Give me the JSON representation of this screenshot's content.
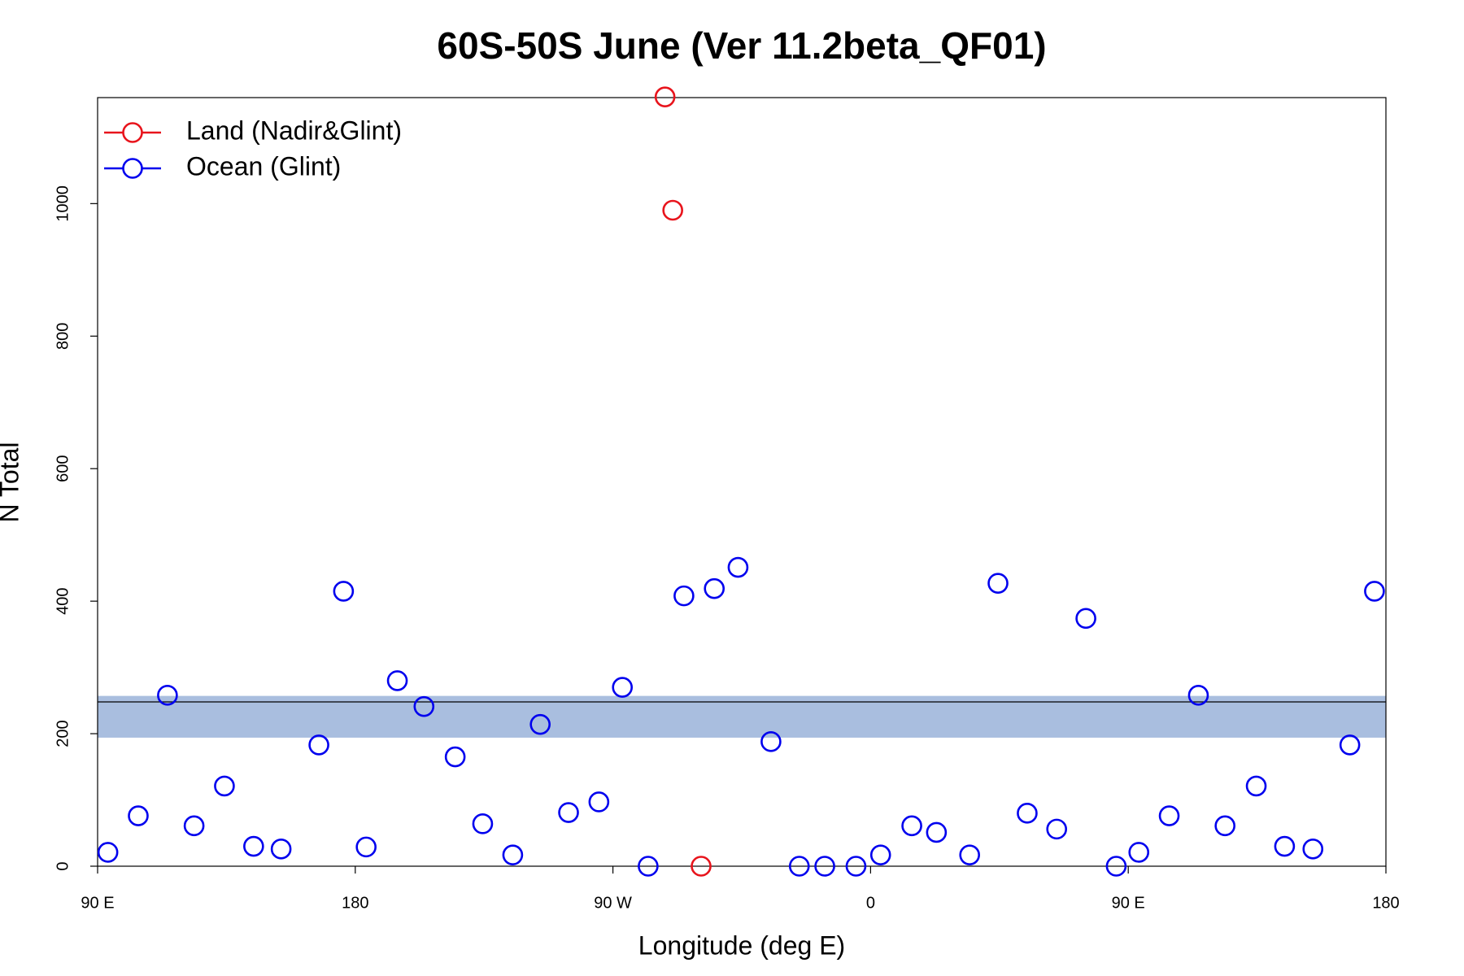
{
  "chart_data": {
    "type": "scatter",
    "title": "60S-50S June (Ver 11.2beta_QF01)",
    "x_label": "Longitude (deg E)",
    "y_label": "N Total",
    "xlim": [
      90,
      540
    ],
    "ylim": [
      0,
      1160
    ],
    "xticks": [
      {
        "value": 90,
        "label": "90 E"
      },
      180,
      {
        "value": 270,
        "label": "90 W"
      },
      {
        "value": 360,
        "label": "0"
      },
      {
        "value": 450,
        "label": "90 E"
      },
      {
        "value": 540,
        "label": "180"
      }
    ],
    "yticks": [
      0,
      200,
      400,
      600,
      800,
      1000
    ],
    "legend": "top-left",
    "reference_band": {
      "lower": 194,
      "upper": 257,
      "color": "#a9bedf"
    },
    "reference_line": {
      "value": 248,
      "color": "#000000"
    },
    "series": [
      {
        "name": "Land (Nadir&Glint)",
        "color": "#e8141c",
        "x": [
          288.2,
          290.9,
          300.8
        ],
        "values": [
          1161,
          990,
          0
        ]
      },
      {
        "name": "Ocean (Glint)",
        "color": "#0000ee",
        "x": [
          93.6,
          104.2,
          114.4,
          123.7,
          134.3,
          144.5,
          154.1,
          167.3,
          175.9,
          183.8,
          194.7,
          204.0,
          214.9,
          224.5,
          235.0,
          244.6,
          254.5,
          265.1,
          273.3,
          282.3,
          294.8,
          305.4,
          313.7,
          325.2,
          335.1,
          344.0,
          354.9,
          363.5,
          374.4,
          383.0,
          394.6,
          404.5,
          414.7,
          425.0,
          435.2,
          445.8,
          453.7,
          464.3,
          474.5,
          483.8,
          494.7,
          504.6,
          514.5,
          527.4,
          536.0
        ],
        "values": [
          21,
          76,
          258,
          61,
          121,
          30,
          26,
          183,
          415,
          29,
          280,
          241,
          165,
          64,
          17,
          214,
          81,
          97,
          270,
          0,
          408,
          419,
          451,
          188,
          0,
          0,
          0,
          17,
          61,
          51,
          17,
          427,
          80,
          56,
          374,
          0,
          21,
          76,
          258,
          61,
          121,
          30,
          26,
          183,
          415
        ]
      }
    ]
  }
}
